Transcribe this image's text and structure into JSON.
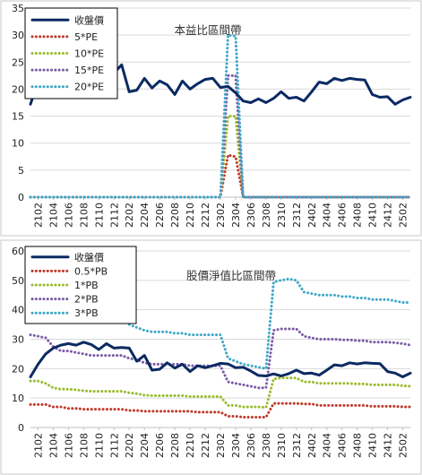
{
  "chart_data": [
    {
      "type": "line",
      "annotation": "本益比區間帶",
      "ylim": [
        0,
        35
      ],
      "yticks": [
        0,
        5,
        10,
        15,
        20,
        25,
        30,
        35
      ],
      "grid": true,
      "legend": "top-left",
      "x": [
        "2101",
        "2102",
        "2103",
        "2104",
        "2105",
        "2106",
        "2107",
        "2108",
        "2109",
        "2110",
        "2111",
        "2112",
        "2201",
        "2202",
        "2203",
        "2204",
        "2205",
        "2206",
        "2207",
        "2208",
        "2209",
        "2210",
        "2211",
        "2212",
        "2301",
        "2302",
        "2303",
        "2304",
        "2305",
        "2306",
        "2307",
        "2308",
        "2309",
        "2310",
        "2311",
        "2312",
        "2401",
        "2402",
        "2403",
        "2404",
        "2405",
        "2406",
        "2407",
        "2408",
        "2409",
        "2410",
        "2411",
        "2412",
        "2501",
        "2502",
        "2503"
      ],
      "xticks": [
        "2102",
        "2104",
        "2106",
        "2108",
        "2110",
        "2112",
        "2202",
        "2204",
        "2206",
        "2208",
        "2210",
        "2212",
        "2302",
        "2304",
        "2306",
        "2308",
        "2310",
        "2312",
        "2402",
        "2404",
        "2406",
        "2408",
        "2410",
        "2412",
        "2502"
      ],
      "series": [
        {
          "name": "收盤價",
          "color": "#0b2a63",
          "style": "solid",
          "values": [
            17.2,
            21.5,
            24.5,
            26.0,
            25.0,
            26.5,
            26.2,
            27.0,
            27.2,
            27.1,
            27.1,
            23.0,
            24.5,
            19.5,
            19.8,
            22.0,
            20.2,
            21.5,
            20.8,
            19.0,
            21.5,
            20.0,
            21.0,
            21.8,
            22.0,
            20.3,
            20.5,
            19.3,
            17.8,
            17.5,
            18.2,
            17.5,
            18.3,
            19.5,
            18.3,
            18.5,
            17.8,
            19.5,
            21.3,
            21.0,
            22.0,
            21.6,
            22.0,
            21.8,
            21.7,
            19.0,
            18.5,
            18.6,
            17.2,
            18.0,
            18.5
          ]
        },
        {
          "name": "5*PE",
          "color": "#c0392b",
          "style": "dotted",
          "values": [
            0,
            0,
            0,
            0,
            0,
            0,
            0,
            0,
            0,
            0,
            0,
            0,
            0,
            0,
            0,
            0,
            0,
            0,
            0,
            0,
            0,
            0,
            0,
            0,
            0,
            0,
            7.8,
            7.5,
            0,
            0,
            0,
            0,
            0,
            0,
            0,
            0,
            0,
            0,
            0,
            0,
            0,
            0,
            0,
            0,
            0,
            0,
            0,
            0,
            0,
            0,
            0
          ]
        },
        {
          "name": "10*PE",
          "color": "#9bbb2f",
          "style": "dotted",
          "values": [
            0,
            0,
            0,
            0,
            0,
            0,
            0,
            0,
            0,
            0,
            0,
            0,
            0,
            0,
            0,
            0,
            0,
            0,
            0,
            0,
            0,
            0,
            0,
            0,
            0,
            0,
            15.0,
            15.0,
            0,
            0,
            0,
            0,
            0,
            0,
            0,
            0,
            0,
            0,
            0,
            0,
            0,
            0,
            0,
            0,
            0,
            0,
            0,
            0,
            0,
            0,
            0
          ]
        },
        {
          "name": "15*PE",
          "color": "#7b5aa6",
          "style": "dotted",
          "values": [
            0,
            0,
            0,
            0,
            0,
            0,
            0,
            0,
            0,
            0,
            0,
            0,
            0,
            0,
            0,
            0,
            0,
            0,
            0,
            0,
            0,
            0,
            0,
            0,
            0,
            0,
            22.5,
            22.5,
            0,
            0,
            0,
            0,
            0,
            0,
            0,
            0,
            0,
            0,
            0,
            0,
            0,
            0,
            0,
            0,
            0,
            0,
            0,
            0,
            0,
            0,
            0
          ]
        },
        {
          "name": "20*PE",
          "color": "#3fa8c6",
          "style": "dotted",
          "values": [
            0,
            0,
            0,
            0,
            0,
            0,
            0,
            0,
            0,
            0,
            0,
            0,
            0,
            0,
            0,
            0,
            0,
            0,
            0,
            0,
            0,
            0,
            0,
            0,
            0,
            0,
            30.0,
            29.8,
            0,
            0,
            0,
            0,
            0,
            0,
            0,
            0,
            0,
            0,
            0,
            0,
            0,
            0,
            0,
            0,
            0,
            0,
            0,
            0,
            0,
            0,
            0
          ]
        }
      ]
    },
    {
      "type": "line",
      "annotation": "股價淨值比區間帶",
      "ylim": [
        0,
        60
      ],
      "yticks": [
        0,
        10,
        20,
        30,
        40,
        50,
        60
      ],
      "grid": true,
      "legend": "top-left",
      "x": [
        "2101",
        "2102",
        "2103",
        "2104",
        "2105",
        "2106",
        "2107",
        "2108",
        "2109",
        "2110",
        "2111",
        "2112",
        "2201",
        "2202",
        "2203",
        "2204",
        "2205",
        "2206",
        "2207",
        "2208",
        "2209",
        "2210",
        "2211",
        "2212",
        "2301",
        "2302",
        "2303",
        "2304",
        "2305",
        "2306",
        "2307",
        "2308",
        "2309",
        "2310",
        "2311",
        "2312",
        "2401",
        "2402",
        "2403",
        "2404",
        "2405",
        "2406",
        "2407",
        "2408",
        "2409",
        "2410",
        "2411",
        "2412",
        "2501",
        "2502",
        "2503"
      ],
      "xticks": [
        "2102",
        "2104",
        "2106",
        "2108",
        "2110",
        "2112",
        "2202",
        "2204",
        "2206",
        "2208",
        "2210",
        "2212",
        "2302",
        "2304",
        "2306",
        "2308",
        "2310",
        "2312",
        "2402",
        "2404",
        "2406",
        "2408",
        "2410",
        "2412",
        "2502"
      ],
      "series": [
        {
          "name": "收盤價",
          "color": "#0b2a63",
          "style": "solid",
          "values": [
            17.2,
            21.5,
            25.0,
            27.0,
            28.0,
            28.5,
            28.0,
            29.0,
            28.2,
            26.5,
            28.5,
            27.0,
            27.2,
            27.0,
            22.5,
            24.5,
            19.5,
            19.8,
            22.0,
            20.2,
            21.5,
            19.0,
            21.0,
            20.3,
            21.0,
            21.8,
            21.6,
            20.3,
            20.5,
            19.2,
            17.7,
            17.5,
            18.2,
            17.5,
            18.3,
            19.5,
            18.3,
            18.5,
            17.8,
            19.5,
            21.3,
            21.0,
            22.0,
            21.6,
            22.0,
            21.8,
            21.7,
            19.0,
            18.5,
            17.2,
            18.5
          ]
        },
        {
          "name": "0.5*PB",
          "color": "#c0392b",
          "style": "dotted",
          "values": [
            7.8,
            7.8,
            7.8,
            7.0,
            7.0,
            6.5,
            6.5,
            6.2,
            6.2,
            6.2,
            6.2,
            6.2,
            6.2,
            5.8,
            5.8,
            5.5,
            5.5,
            5.5,
            5.5,
            5.5,
            5.5,
            5.5,
            5.2,
            5.2,
            5.2,
            5.2,
            3.8,
            3.8,
            3.5,
            3.5,
            3.5,
            3.5,
            8.2,
            8.2,
            8.2,
            8.2,
            8.0,
            8.0,
            7.5,
            7.5,
            7.5,
            7.5,
            7.5,
            7.5,
            7.5,
            7.2,
            7.2,
            7.2,
            7.2,
            7.0,
            7.0
          ]
        },
        {
          "name": "1*PB",
          "color": "#9bbb2f",
          "style": "dotted",
          "values": [
            15.8,
            15.8,
            15.0,
            13.5,
            13.0,
            13.0,
            12.8,
            12.5,
            12.3,
            12.3,
            12.3,
            12.3,
            12.3,
            11.8,
            11.5,
            11.0,
            10.8,
            10.8,
            10.8,
            10.8,
            10.8,
            10.5,
            10.5,
            10.5,
            10.5,
            10.5,
            7.5,
            7.5,
            7.0,
            7.0,
            7.0,
            6.8,
            16.5,
            16.8,
            16.8,
            16.8,
            15.5,
            15.5,
            15.0,
            15.0,
            15.0,
            15.0,
            15.0,
            14.8,
            14.8,
            14.5,
            14.5,
            14.5,
            14.5,
            14.2,
            14.0
          ]
        },
        {
          "name": "2*PB",
          "color": "#7b5aa6",
          "style": "dotted",
          "values": [
            31.5,
            31.0,
            30.5,
            27.5,
            26.0,
            26.0,
            25.5,
            25.0,
            24.5,
            24.5,
            24.5,
            24.5,
            24.5,
            23.5,
            23.0,
            22.0,
            21.5,
            21.5,
            21.5,
            21.5,
            21.5,
            21.0,
            21.0,
            21.0,
            21.0,
            21.0,
            15.5,
            15.0,
            14.5,
            14.0,
            13.5,
            13.5,
            33.0,
            33.5,
            33.5,
            33.5,
            31.0,
            30.5,
            30.0,
            30.0,
            30.0,
            29.8,
            29.8,
            29.5,
            29.5,
            29.0,
            29.0,
            29.0,
            28.8,
            28.5,
            28.0
          ]
        },
        {
          "name": "3*PB",
          "color": "#3fa8c6",
          "style": "dotted",
          "values": [
            47.0,
            46.5,
            45.5,
            41.5,
            39.0,
            39.0,
            38.5,
            37.5,
            37.0,
            37.0,
            37.0,
            37.0,
            37.0,
            35.0,
            34.0,
            33.0,
            32.5,
            32.5,
            32.5,
            32.0,
            32.0,
            31.5,
            31.5,
            31.5,
            31.5,
            31.5,
            23.5,
            22.5,
            21.5,
            21.0,
            20.5,
            20.0,
            49.5,
            50.0,
            50.5,
            50.0,
            46.0,
            45.5,
            45.0,
            45.0,
            45.0,
            44.5,
            44.5,
            44.0,
            44.0,
            43.5,
            43.5,
            43.5,
            43.0,
            42.5,
            42.5
          ]
        }
      ]
    }
  ]
}
